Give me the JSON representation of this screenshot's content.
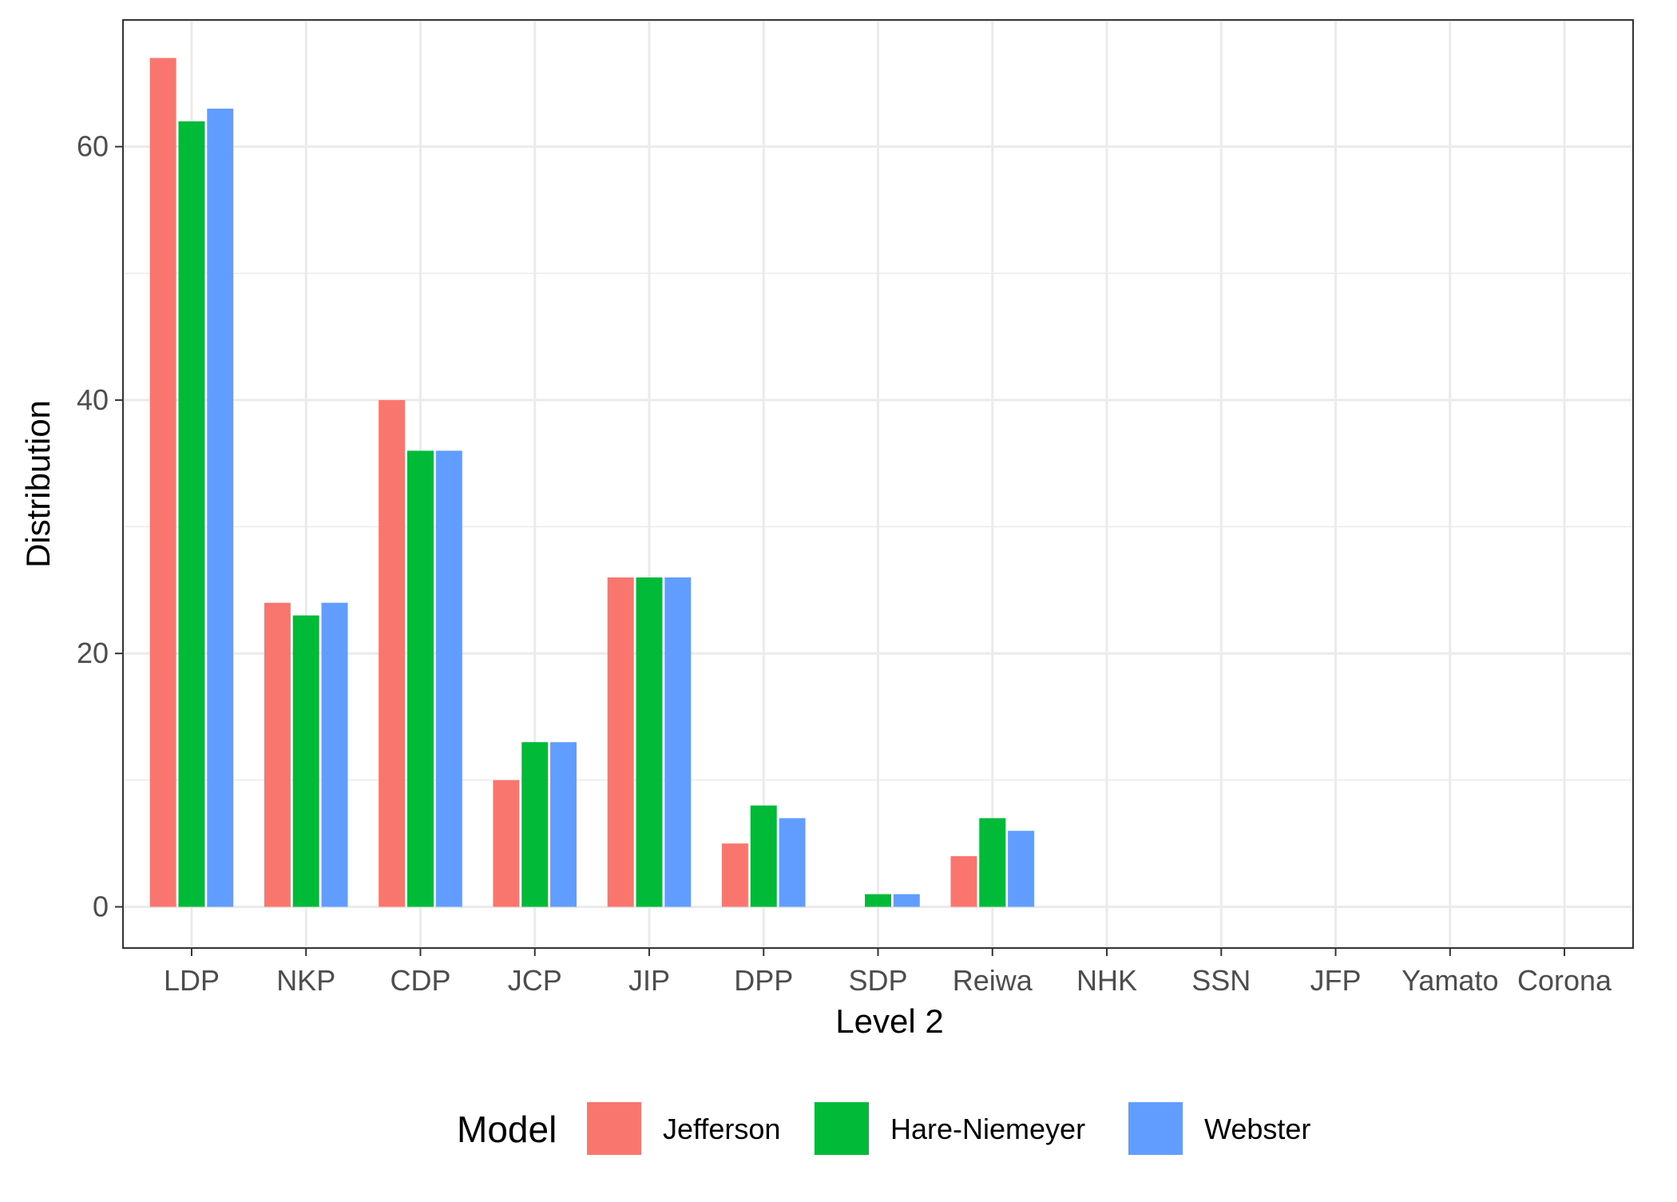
{
  "chart_data": {
    "type": "bar",
    "xlabel": "Level 2",
    "ylabel": "Distribution",
    "categories": [
      "LDP",
      "NKP",
      "CDP",
      "JCP",
      "JIP",
      "DPP",
      "SDP",
      "Reiwa",
      "NHK",
      "SSN",
      "JFP",
      "Yamato",
      "Corona"
    ],
    "series": [
      {
        "name": "Jefferson",
        "color": "#F8766D",
        "values": [
          67,
          24,
          40,
          10,
          26,
          5,
          0,
          4,
          0,
          0,
          0,
          0,
          0
        ]
      },
      {
        "name": "Hare-Niemeyer",
        "color": "#00BA38",
        "values": [
          62,
          23,
          36,
          13,
          26,
          8,
          1,
          7,
          0,
          0,
          0,
          0,
          0
        ]
      },
      {
        "name": "Webster",
        "color": "#619CFF",
        "values": [
          63,
          24,
          36,
          13,
          26,
          7,
          1,
          6,
          0,
          0,
          0,
          0,
          0
        ]
      }
    ],
    "ylim": [
      -3.25,
      70
    ],
    "y_ticks": [
      0,
      20,
      40,
      60
    ],
    "grid": true,
    "legend": {
      "title": "Model",
      "position": "bottom"
    }
  }
}
